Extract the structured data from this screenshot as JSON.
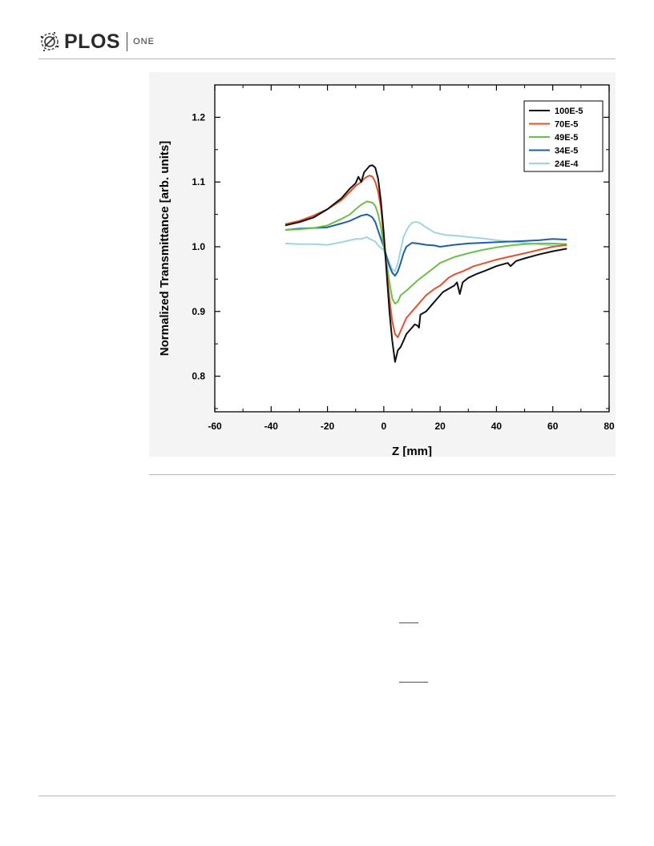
{
  "header": {
    "brand": "PLOS",
    "journal": "ONE"
  },
  "colors": {
    "rule": "#b5b5b5",
    "figure_background": "#f4f4f4",
    "plot_background": "#ffffff"
  },
  "chart_data": {
    "type": "line",
    "title": "",
    "xlabel": "Z [mm]",
    "ylabel": "Normalized Transmittance [arb. units]",
    "xlim": [
      -60,
      80
    ],
    "ylim": [
      0.745,
      1.25
    ],
    "xticks": [
      -60,
      -40,
      -20,
      0,
      20,
      40,
      60,
      80
    ],
    "xtick_labels": [
      "-60",
      "-40",
      "-20",
      "0",
      "20",
      "40",
      "60",
      "80"
    ],
    "yticks": [
      0.8,
      0.9,
      1.0,
      1.1,
      1.2
    ],
    "ytick_labels": [
      "0.8",
      "0.9",
      "1.0",
      "1.1",
      "1.2"
    ],
    "grid": false,
    "legend_position": "top-right",
    "series": [
      {
        "name": "100E-5",
        "color": "#111111",
        "points": [
          [
            -35,
            1.033
          ],
          [
            -30,
            1.038
          ],
          [
            -25,
            1.045
          ],
          [
            -20,
            1.058
          ],
          [
            -15,
            1.075
          ],
          [
            -12,
            1.09
          ],
          [
            -10,
            1.098
          ],
          [
            -9,
            1.108
          ],
          [
            -8,
            1.1
          ],
          [
            -7,
            1.115
          ],
          [
            -6,
            1.12
          ],
          [
            -5,
            1.125
          ],
          [
            -4,
            1.126
          ],
          [
            -3,
            1.122
          ],
          [
            -2,
            1.105
          ],
          [
            -1,
            1.07
          ],
          [
            0,
            1.02
          ],
          [
            1,
            0.96
          ],
          [
            2,
            0.9
          ],
          [
            3,
            0.855
          ],
          [
            3.5,
            0.838
          ],
          [
            4,
            0.822
          ],
          [
            5,
            0.84
          ],
          [
            6,
            0.845
          ],
          [
            7,
            0.855
          ],
          [
            8,
            0.865
          ],
          [
            9,
            0.87
          ],
          [
            10,
            0.875
          ],
          [
            11,
            0.88
          ],
          [
            12,
            0.878
          ],
          [
            12.5,
            0.875
          ],
          [
            13,
            0.895
          ],
          [
            15,
            0.9
          ],
          [
            17,
            0.91
          ],
          [
            19,
            0.92
          ],
          [
            21,
            0.93
          ],
          [
            23,
            0.935
          ],
          [
            25,
            0.94
          ],
          [
            26,
            0.945
          ],
          [
            27,
            0.927
          ],
          [
            28,
            0.945
          ],
          [
            30,
            0.952
          ],
          [
            33,
            0.958
          ],
          [
            36,
            0.963
          ],
          [
            40,
            0.97
          ],
          [
            44,
            0.975
          ],
          [
            45,
            0.97
          ],
          [
            47,
            0.978
          ],
          [
            50,
            0.982
          ],
          [
            55,
            0.988
          ],
          [
            60,
            0.993
          ],
          [
            65,
            0.997
          ]
        ]
      },
      {
        "name": "70E-5",
        "color": "#e8502c",
        "points": [
          [
            -35,
            1.035
          ],
          [
            -30,
            1.04
          ],
          [
            -25,
            1.048
          ],
          [
            -20,
            1.058
          ],
          [
            -15,
            1.072
          ],
          [
            -12,
            1.085
          ],
          [
            -10,
            1.094
          ],
          [
            -8,
            1.1
          ],
          [
            -7,
            1.105
          ],
          [
            -6,
            1.108
          ],
          [
            -5,
            1.11
          ],
          [
            -4,
            1.108
          ],
          [
            -3,
            1.1
          ],
          [
            -2,
            1.085
          ],
          [
            -1,
            1.06
          ],
          [
            0,
            1.015
          ],
          [
            1,
            0.965
          ],
          [
            2,
            0.92
          ],
          [
            3,
            0.885
          ],
          [
            4,
            0.865
          ],
          [
            5,
            0.86
          ],
          [
            6,
            0.87
          ],
          [
            7,
            0.88
          ],
          [
            8,
            0.89
          ],
          [
            10,
            0.9
          ],
          [
            12,
            0.91
          ],
          [
            15,
            0.925
          ],
          [
            18,
            0.935
          ],
          [
            20,
            0.94
          ],
          [
            23,
            0.952
          ],
          [
            25,
            0.957
          ],
          [
            28,
            0.962
          ],
          [
            32,
            0.97
          ],
          [
            36,
            0.975
          ],
          [
            40,
            0.98
          ],
          [
            45,
            0.985
          ],
          [
            50,
            0.99
          ],
          [
            55,
            0.995
          ],
          [
            60,
            1.0
          ],
          [
            65,
            1.003
          ]
        ]
      },
      {
        "name": "49E-5",
        "color": "#6cc04a",
        "points": [
          [
            -35,
            1.026
          ],
          [
            -30,
            1.027
          ],
          [
            -25,
            1.029
          ],
          [
            -20,
            1.033
          ],
          [
            -15,
            1.043
          ],
          [
            -12,
            1.05
          ],
          [
            -10,
            1.058
          ],
          [
            -8,
            1.065
          ],
          [
            -6,
            1.07
          ],
          [
            -4,
            1.068
          ],
          [
            -3,
            1.063
          ],
          [
            -2,
            1.05
          ],
          [
            -1,
            1.03
          ],
          [
            0,
            1.0
          ],
          [
            1,
            0.975
          ],
          [
            2,
            0.945
          ],
          [
            3,
            0.92
          ],
          [
            4,
            0.912
          ],
          [
            5,
            0.915
          ],
          [
            6,
            0.925
          ],
          [
            8,
            0.932
          ],
          [
            10,
            0.94
          ],
          [
            12,
            0.948
          ],
          [
            15,
            0.958
          ],
          [
            18,
            0.968
          ],
          [
            20,
            0.975
          ],
          [
            25,
            0.984
          ],
          [
            30,
            0.99
          ],
          [
            35,
            0.995
          ],
          [
            40,
            0.999
          ],
          [
            45,
            1.002
          ],
          [
            50,
            1.004
          ],
          [
            55,
            1.005
          ],
          [
            60,
            1.005
          ],
          [
            65,
            1.004
          ]
        ]
      },
      {
        "name": "34E-5",
        "color": "#1f5ea8",
        "points": [
          [
            -35,
            1.026
          ],
          [
            -30,
            1.028
          ],
          [
            -25,
            1.029
          ],
          [
            -20,
            1.03
          ],
          [
            -15,
            1.036
          ],
          [
            -12,
            1.04
          ],
          [
            -10,
            1.044
          ],
          [
            -8,
            1.048
          ],
          [
            -6,
            1.05
          ],
          [
            -5,
            1.048
          ],
          [
            -4,
            1.045
          ],
          [
            -3,
            1.038
          ],
          [
            -2,
            1.025
          ],
          [
            -1,
            1.012
          ],
          [
            0,
            1.0
          ],
          [
            1,
            0.985
          ],
          [
            2,
            0.97
          ],
          [
            3,
            0.96
          ],
          [
            4,
            0.955
          ],
          [
            5,
            0.962
          ],
          [
            6,
            0.975
          ],
          [
            7,
            0.99
          ],
          [
            8,
            1.0
          ],
          [
            10,
            1.006
          ],
          [
            12,
            1.005
          ],
          [
            15,
            1.003
          ],
          [
            18,
            1.002
          ],
          [
            20,
            1.0
          ],
          [
            25,
            1.003
          ],
          [
            30,
            1.005
          ],
          [
            35,
            1.006
          ],
          [
            40,
            1.007
          ],
          [
            45,
            1.008
          ],
          [
            50,
            1.009
          ],
          [
            55,
            1.01
          ],
          [
            60,
            1.012
          ],
          [
            65,
            1.011
          ]
        ]
      },
      {
        "name": "24E-4",
        "color": "#9fd5df",
        "points": [
          [
            -35,
            1.005
          ],
          [
            -30,
            1.004
          ],
          [
            -25,
            1.004
          ],
          [
            -20,
            1.003
          ],
          [
            -15,
            1.007
          ],
          [
            -12,
            1.01
          ],
          [
            -10,
            1.012
          ],
          [
            -8,
            1.012
          ],
          [
            -6,
            1.015
          ],
          [
            -5,
            1.012
          ],
          [
            -4,
            1.01
          ],
          [
            -3,
            1.008
          ],
          [
            -2,
            1.002
          ],
          [
            -1,
            0.998
          ],
          [
            0,
            0.995
          ],
          [
            1,
            0.985
          ],
          [
            2,
            0.975
          ],
          [
            3,
            0.965
          ],
          [
            4,
            0.962
          ],
          [
            5,
            0.975
          ],
          [
            6,
            0.995
          ],
          [
            7,
            1.015
          ],
          [
            8,
            1.025
          ],
          [
            9,
            1.032
          ],
          [
            10,
            1.037
          ],
          [
            11,
            1.038
          ],
          [
            12,
            1.038
          ],
          [
            13,
            1.036
          ],
          [
            15,
            1.03
          ],
          [
            18,
            1.022
          ],
          [
            22,
            1.018
          ],
          [
            26,
            1.017
          ],
          [
            30,
            1.015
          ],
          [
            35,
            1.013
          ],
          [
            40,
            1.01
          ],
          [
            45,
            1.008
          ],
          [
            50,
            1.006
          ],
          [
            55,
            1.004
          ],
          [
            60,
            1.002
          ],
          [
            65,
            1.002
          ]
        ]
      }
    ]
  }
}
